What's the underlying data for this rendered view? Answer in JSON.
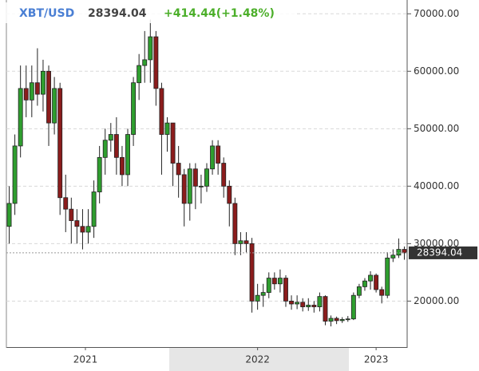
{
  "chart_data": {
    "type": "candlestick",
    "symbol": "XBT/USD",
    "change": "+414.44(+1.48%)",
    "x": [
      0,
      1,
      2,
      3,
      4,
      5,
      6,
      7,
      8,
      9,
      10,
      11,
      12,
      13,
      14,
      15,
      16,
      17,
      18,
      19,
      20,
      21,
      22,
      23,
      24,
      25,
      26,
      27,
      28,
      29,
      30,
      31,
      32,
      33,
      34,
      35,
      36,
      37,
      38,
      39,
      40,
      41,
      42,
      43,
      44,
      45,
      46,
      47,
      48,
      49,
      50,
      51,
      52,
      53,
      54,
      55,
      56,
      57,
      58,
      59,
      60,
      61,
      62,
      63,
      64,
      65,
      66,
      67,
      68,
      69,
      70
    ],
    "open": [
      33000,
      37000,
      47000,
      57000,
      55000,
      58000,
      56000,
      60000,
      51000,
      57000,
      38000,
      36000,
      34000,
      33000,
      32000,
      33000,
      39000,
      45000,
      48000,
      49000,
      45000,
      42000,
      49000,
      58000,
      61000,
      62000,
      66000,
      57000,
      49000,
      51000,
      44000,
      42000,
      37000,
      43000,
      40000,
      40000,
      43000,
      47000,
      44000,
      40000,
      37000,
      30000,
      30500,
      30000,
      20000,
      21000,
      21500,
      24000,
      23000,
      24000,
      20000,
      19500,
      19800,
      19000,
      19300,
      19000,
      20800,
      16500,
      17000,
      16600,
      16800,
      16900,
      21000,
      22500,
      23500,
      24500,
      22000,
      21000,
      27500,
      28000,
      29000
    ],
    "high": [
      40000,
      49000,
      61000,
      61000,
      61000,
      64000,
      62000,
      61000,
      59000,
      58000,
      42000,
      38000,
      36000,
      36000,
      36000,
      41000,
      47000,
      50000,
      51000,
      52000,
      47000,
      50000,
      59000,
      63000,
      67000,
      69000,
      67000,
      58000,
      52000,
      51000,
      47000,
      43000,
      44000,
      44000,
      42000,
      44000,
      48000,
      48000,
      45000,
      41000,
      38000,
      32000,
      32000,
      31000,
      23000,
      23000,
      25000,
      25000,
      25500,
      24500,
      21000,
      21000,
      20500,
      20500,
      20000,
      21500,
      21000,
      17500,
      17300,
      17200,
      17400,
      21500,
      23000,
      24000,
      25200,
      24800,
      22500,
      28500,
      29000,
      30900,
      29500
    ],
    "low": [
      30000,
      35000,
      45000,
      52000,
      52000,
      54000,
      53000,
      47000,
      49000,
      35000,
      32000,
      30000,
      30000,
      29000,
      30000,
      31000,
      37000,
      42000,
      46000,
      42000,
      40000,
      40000,
      47000,
      55000,
      58000,
      58000,
      54000,
      42000,
      46000,
      40000,
      38000,
      33000,
      34000,
      36000,
      37000,
      39000,
      42000,
      42000,
      38000,
      33000,
      28000,
      28000,
      28500,
      18000,
      18500,
      19000,
      20500,
      22000,
      21500,
      19000,
      18500,
      18600,
      18200,
      18300,
      18000,
      18200,
      15800,
      15600,
      16000,
      16200,
      16400,
      16700,
      20500,
      21800,
      22000,
      21500,
      19600,
      20500,
      26800,
      27500,
      27200
    ],
    "close": [
      37000,
      47000,
      57000,
      55000,
      58000,
      56000,
      60000,
      51000,
      57000,
      38000,
      36000,
      34000,
      33000,
      32000,
      33000,
      39000,
      45000,
      48000,
      49000,
      45000,
      42000,
      49000,
      58000,
      61000,
      62000,
      66000,
      57000,
      49000,
      51000,
      44000,
      42000,
      37000,
      43000,
      40000,
      40000,
      43000,
      47000,
      44000,
      40000,
      37000,
      30000,
      30500,
      30000,
      20000,
      21000,
      21500,
      24000,
      23000,
      24000,
      20000,
      19500,
      19800,
      19000,
      19300,
      19000,
      20800,
      16500,
      17000,
      16600,
      16800,
      16900,
      21000,
      22500,
      23500,
      24500,
      22000,
      21000,
      27500,
      28000,
      29000,
      28394.04
    ],
    "up_color": "#2f9e2f",
    "down_color": "#8b1c1c",
    "xlim": [
      -0.5,
      70.5
    ],
    "xticks": [
      {
        "value": 13.5,
        "label": "2021"
      },
      {
        "value": 44,
        "label": "2022"
      },
      {
        "value": 65,
        "label": "2023"
      }
    ],
    "ylim": [
      12000,
      72400
    ],
    "yticks": [
      {
        "value": 20000,
        "label": "20000.00"
      },
      {
        "value": 30000,
        "label": "30000.00"
      },
      {
        "value": 40000,
        "label": "40000.00"
      },
      {
        "value": 50000,
        "label": "50000.00"
      },
      {
        "value": 60000,
        "label": "60000.00"
      },
      {
        "value": 70000,
        "label": "70000.00"
      }
    ],
    "grid": true
  }
}
